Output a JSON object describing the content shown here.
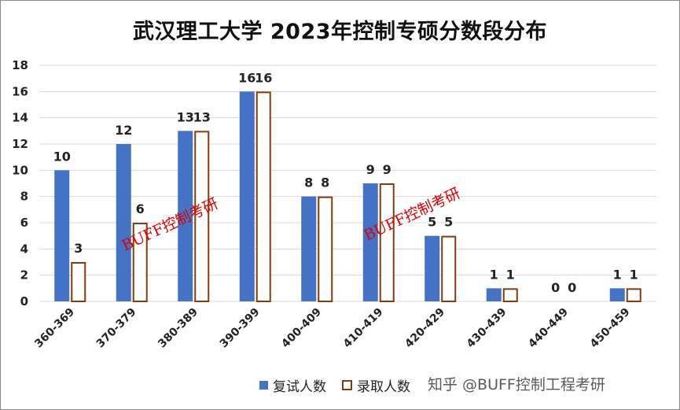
{
  "chart_data": {
    "type": "bar",
    "title": "武汉理工大学 2023年控制专硕分数段分布",
    "categories": [
      "360-369",
      "370-379",
      "380-389",
      "390-399",
      "400-409",
      "410-419",
      "420-429",
      "430-439",
      "440-449",
      "450-459"
    ],
    "series": [
      {
        "name": "复试人数",
        "values": [
          10,
          12,
          13,
          16,
          8,
          9,
          5,
          1,
          0,
          1
        ]
      },
      {
        "name": "录取人数",
        "values": [
          3,
          6,
          13,
          16,
          8,
          9,
          5,
          1,
          0,
          1
        ]
      }
    ],
    "ylim": [
      0,
      18
    ],
    "yticks": [
      0,
      2,
      4,
      6,
      8,
      10,
      12,
      14,
      16,
      18
    ],
    "grid": true,
    "legend_position": "bottom",
    "colors": {
      "series1_fill": "#4472c4",
      "series2_fill": "#ffffff",
      "series2_border": "#843c0c",
      "grid": "#d9d9d9"
    }
  },
  "watermarks": [
    "BUFF控制考研",
    "BUFF控制考研"
  ],
  "credit": "知乎 @BUFF控制工程考研"
}
